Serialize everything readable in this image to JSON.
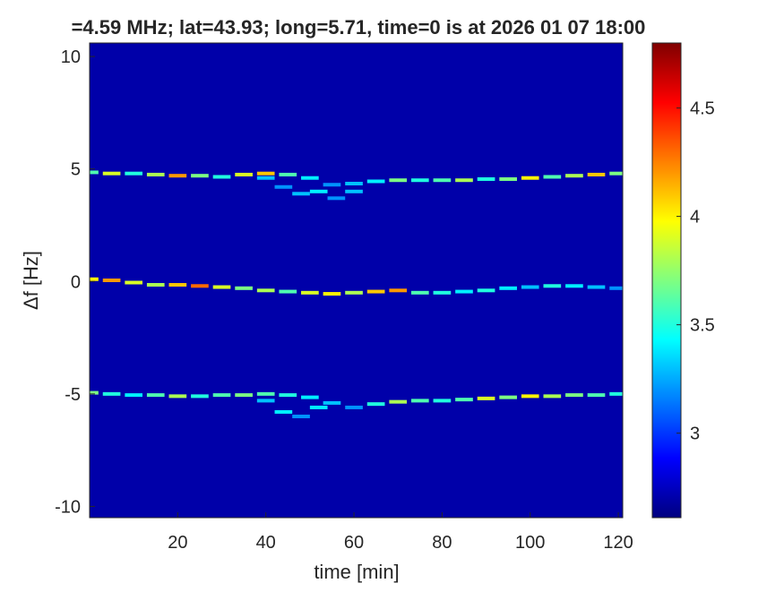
{
  "chart_data": {
    "type": "spectrogram",
    "title": "=4.59 MHz;  lat=43.93; long=5.71, time=0 is at 2026 01 07 18:00",
    "xlabel": "time [min]",
    "ylabel": "Δf [Hz]",
    "xlim": [
      0,
      121
    ],
    "ylim": [
      -10.5,
      10.6
    ],
    "xticks": [
      20,
      40,
      60,
      80,
      100,
      120
    ],
    "yticks": [
      -10,
      -5,
      0,
      5,
      10
    ],
    "colormap": "jet",
    "clim": [
      2.61,
      4.8
    ],
    "cticks": [
      3,
      3.5,
      4,
      4.5
    ],
    "background": 2.7,
    "traces": [
      {
        "x": [
          0,
          5,
          10,
          15,
          20,
          25,
          30,
          35,
          40,
          45,
          50,
          55,
          60,
          65,
          70,
          75,
          80,
          85,
          90,
          95,
          100,
          105,
          110,
          115,
          120
        ],
        "values": [
          4.85,
          4.8,
          4.8,
          4.75,
          4.7,
          4.7,
          4.65,
          4.75,
          4.8,
          4.75,
          4.6,
          4.3,
          4.35,
          4.45,
          4.5,
          4.5,
          4.5,
          4.5,
          4.55,
          4.55,
          4.6,
          4.65,
          4.7,
          4.75,
          4.8
        ],
        "z": [
          3.6,
          3.9,
          3.5,
          3.8,
          4.2,
          3.7,
          3.5,
          3.9,
          4.1,
          3.6,
          3.4,
          3.2,
          3.3,
          3.4,
          3.7,
          3.5,
          3.6,
          3.8,
          3.5,
          3.7,
          4.0,
          3.6,
          3.8,
          4.1,
          3.7
        ]
      },
      {
        "x": [
          40,
          44,
          48,
          52,
          56,
          60
        ],
        "values": [
          4.6,
          4.2,
          3.9,
          4.0,
          3.7,
          4.0
        ],
        "z": [
          3.3,
          3.2,
          3.3,
          3.4,
          3.2,
          3.3
        ]
      },
      {
        "x": [
          0,
          5,
          10,
          15,
          20,
          25,
          30,
          35,
          40,
          45,
          50,
          55,
          60,
          65,
          70,
          75,
          80,
          85,
          90,
          95,
          100,
          105,
          110,
          115,
          120
        ],
        "values": [
          0.1,
          0.05,
          -0.05,
          -0.15,
          -0.15,
          -0.2,
          -0.25,
          -0.3,
          -0.4,
          -0.45,
          -0.5,
          -0.55,
          -0.5,
          -0.45,
          -0.4,
          -0.5,
          -0.5,
          -0.45,
          -0.4,
          -0.3,
          -0.25,
          -0.2,
          -0.2,
          -0.25,
          -0.3
        ],
        "z": [
          4.0,
          4.2,
          3.9,
          3.8,
          4.1,
          4.3,
          3.9,
          3.7,
          3.8,
          3.6,
          3.9,
          4.0,
          3.8,
          4.1,
          4.2,
          3.6,
          3.5,
          3.4,
          3.5,
          3.4,
          3.3,
          3.5,
          3.4,
          3.3,
          3.2
        ]
      },
      {
        "x": [
          0,
          5,
          10,
          15,
          20,
          25,
          30,
          35,
          40,
          45,
          50,
          55,
          60,
          65,
          70,
          75,
          80,
          85,
          90,
          95,
          100,
          105,
          110,
          115,
          120
        ],
        "values": [
          -4.95,
          -5.0,
          -5.05,
          -5.05,
          -5.1,
          -5.1,
          -5.05,
          -5.05,
          -5.0,
          -5.05,
          -5.15,
          -5.4,
          -5.6,
          -5.45,
          -5.35,
          -5.3,
          -5.3,
          -5.25,
          -5.2,
          -5.15,
          -5.1,
          -5.1,
          -5.05,
          -5.05,
          -5.0
        ],
        "z": [
          3.7,
          3.5,
          3.4,
          3.6,
          3.8,
          3.5,
          3.6,
          3.7,
          3.6,
          3.5,
          3.4,
          3.3,
          3.2,
          3.5,
          3.8,
          3.6,
          3.5,
          3.6,
          3.9,
          3.7,
          4.0,
          3.8,
          3.7,
          3.6,
          3.5
        ]
      },
      {
        "x": [
          40,
          44,
          48,
          52
        ],
        "values": [
          -5.3,
          -5.8,
          -6.0,
          -5.6
        ],
        "z": [
          3.3,
          3.4,
          3.2,
          3.4
        ]
      }
    ]
  }
}
